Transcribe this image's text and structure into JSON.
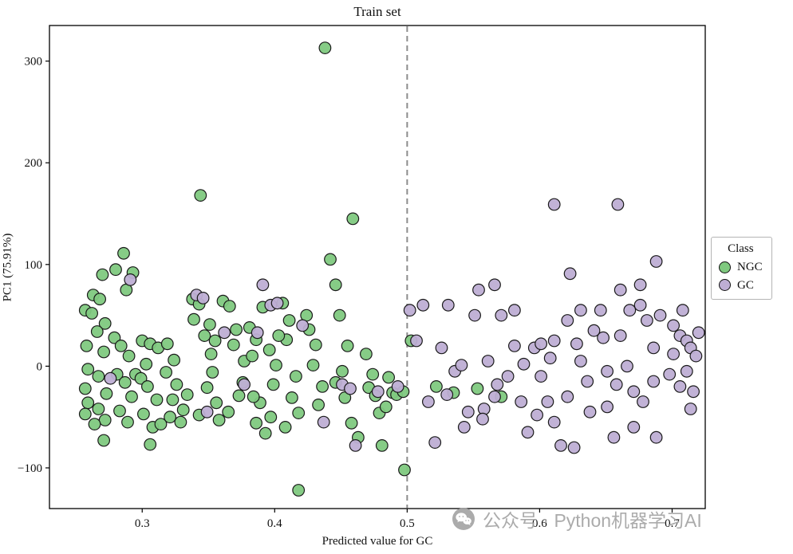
{
  "figure": {
    "title": "Train set"
  },
  "chart_data": {
    "type": "scatter",
    "title": "Train set",
    "xlabel": "Predicted value for GC",
    "ylabel": "PC1 (75.91%)",
    "xlim": [
      0.23,
      0.725
    ],
    "ylim": [
      -140,
      335
    ],
    "xticks": [
      0.3,
      0.4,
      0.5,
      0.6,
      0.7
    ],
    "xtick_labels": [
      "0.3",
      "0.4",
      "0.5",
      "0.6",
      "0.7"
    ],
    "yticks": [
      -100,
      0,
      100,
      200,
      300
    ],
    "ytick_labels": [
      "−100",
      "0",
      "100",
      "200",
      "300"
    ],
    "grid": false,
    "threshold_x": 0.5,
    "threshold_style": {
      "color": "#8c8c8c",
      "dash": "7 5"
    },
    "legend": {
      "title": "Class",
      "position": "right-outside"
    },
    "series": [
      {
        "name": "NGC",
        "color": "#7fc97f",
        "points": [
          [
            0.257,
            55
          ],
          [
            0.262,
            52
          ],
          [
            0.263,
            70
          ],
          [
            0.268,
            66
          ],
          [
            0.27,
            90
          ],
          [
            0.272,
            42
          ],
          [
            0.266,
            34
          ],
          [
            0.258,
            20
          ],
          [
            0.271,
            14
          ],
          [
            0.259,
            -3
          ],
          [
            0.267,
            -10
          ],
          [
            0.257,
            -22
          ],
          [
            0.273,
            -27
          ],
          [
            0.259,
            -36
          ],
          [
            0.267,
            -42
          ],
          [
            0.257,
            -47
          ],
          [
            0.272,
            -53
          ],
          [
            0.264,
            -57
          ],
          [
            0.271,
            -73
          ],
          [
            0.28,
            95
          ],
          [
            0.286,
            111
          ],
          [
            0.293,
            92
          ],
          [
            0.288,
            75
          ],
          [
            0.279,
            28
          ],
          [
            0.284,
            20
          ],
          [
            0.29,
            10
          ],
          [
            0.281,
            -8
          ],
          [
            0.287,
            -16
          ],
          [
            0.292,
            -30
          ],
          [
            0.283,
            -44
          ],
          [
            0.289,
            -55
          ],
          [
            0.295,
            -8
          ],
          [
            0.3,
            25
          ],
          [
            0.306,
            22
          ],
          [
            0.312,
            18
          ],
          [
            0.299,
            -12
          ],
          [
            0.304,
            -20
          ],
          [
            0.311,
            -33
          ],
          [
            0.301,
            -47
          ],
          [
            0.308,
            -60
          ],
          [
            0.306,
            -77
          ],
          [
            0.314,
            -57
          ],
          [
            0.303,
            2
          ],
          [
            0.319,
            22
          ],
          [
            0.324,
            6
          ],
          [
            0.318,
            -6
          ],
          [
            0.326,
            -18
          ],
          [
            0.323,
            -33
          ],
          [
            0.331,
            -43
          ],
          [
            0.329,
            -55
          ],
          [
            0.334,
            -28
          ],
          [
            0.321,
            -50
          ],
          [
            0.338,
            66
          ],
          [
            0.343,
            61
          ],
          [
            0.339,
            46
          ],
          [
            0.344,
            168
          ],
          [
            0.351,
            41
          ],
          [
            0.347,
            30
          ],
          [
            0.353,
            -6
          ],
          [
            0.349,
            -21
          ],
          [
            0.356,
            -36
          ],
          [
            0.343,
            -48
          ],
          [
            0.358,
            -53
          ],
          [
            0.352,
            12
          ],
          [
            0.355,
            25
          ],
          [
            0.361,
            64
          ],
          [
            0.366,
            59
          ],
          [
            0.371,
            36
          ],
          [
            0.369,
            21
          ],
          [
            0.376,
            -16
          ],
          [
            0.373,
            -29
          ],
          [
            0.365,
            -45
          ],
          [
            0.377,
            5
          ],
          [
            0.381,
            38
          ],
          [
            0.386,
            26
          ],
          [
            0.383,
            10
          ],
          [
            0.391,
            58
          ],
          [
            0.389,
            -36
          ],
          [
            0.386,
            -56
          ],
          [
            0.393,
            -66
          ],
          [
            0.396,
            16
          ],
          [
            0.384,
            -30
          ],
          [
            0.397,
            -50
          ],
          [
            0.401,
            1
          ],
          [
            0.399,
            -18
          ],
          [
            0.406,
            62
          ],
          [
            0.411,
            45
          ],
          [
            0.409,
            26
          ],
          [
            0.416,
            -10
          ],
          [
            0.413,
            -31
          ],
          [
            0.418,
            -46
          ],
          [
            0.403,
            30
          ],
          [
            0.408,
            -60
          ],
          [
            0.418,
            -122
          ],
          [
            0.426,
            36
          ],
          [
            0.431,
            21
          ],
          [
            0.429,
            1
          ],
          [
            0.436,
            -20
          ],
          [
            0.424,
            50
          ],
          [
            0.433,
            -38
          ],
          [
            0.438,
            313
          ],
          [
            0.442,
            105
          ],
          [
            0.446,
            80
          ],
          [
            0.449,
            50
          ],
          [
            0.446,
            -16
          ],
          [
            0.453,
            -31
          ],
          [
            0.458,
            -56
          ],
          [
            0.455,
            20
          ],
          [
            0.451,
            -5
          ],
          [
            0.459,
            145
          ],
          [
            0.469,
            12
          ],
          [
            0.471,
            -21
          ],
          [
            0.476,
            -29
          ],
          [
            0.479,
            -46
          ],
          [
            0.463,
            -70
          ],
          [
            0.474,
            -8
          ],
          [
            0.481,
            -78
          ],
          [
            0.486,
            -11
          ],
          [
            0.489,
            -26
          ],
          [
            0.492,
            -28
          ],
          [
            0.497,
            -25
          ],
          [
            0.484,
            -40
          ],
          [
            0.503,
            25
          ],
          [
            0.498,
            -102
          ],
          [
            0.522,
            -20
          ],
          [
            0.535,
            -26
          ],
          [
            0.553,
            -22
          ],
          [
            0.571,
            -30
          ]
        ]
      },
      {
        "name": "GC",
        "color": "#beaed4",
        "points": [
          [
            0.276,
            -12
          ],
          [
            0.291,
            85
          ],
          [
            0.341,
            70
          ],
          [
            0.346,
            67
          ],
          [
            0.349,
            -45
          ],
          [
            0.362,
            33
          ],
          [
            0.377,
            -18
          ],
          [
            0.387,
            33
          ],
          [
            0.391,
            80
          ],
          [
            0.397,
            60
          ],
          [
            0.402,
            62
          ],
          [
            0.421,
            40
          ],
          [
            0.437,
            -55
          ],
          [
            0.451,
            -18
          ],
          [
            0.457,
            -22
          ],
          [
            0.461,
            -78
          ],
          [
            0.493,
            -20
          ],
          [
            0.478,
            -25
          ],
          [
            0.502,
            55
          ],
          [
            0.507,
            25
          ],
          [
            0.512,
            60
          ],
          [
            0.516,
            -35
          ],
          [
            0.521,
            -75
          ],
          [
            0.526,
            18
          ],
          [
            0.531,
            60
          ],
          [
            0.536,
            -5
          ],
          [
            0.541,
            1
          ],
          [
            0.546,
            -45
          ],
          [
            0.551,
            50
          ],
          [
            0.554,
            75
          ],
          [
            0.558,
            -42
          ],
          [
            0.561,
            5
          ],
          [
            0.566,
            80
          ],
          [
            0.566,
            -30
          ],
          [
            0.571,
            50
          ],
          [
            0.576,
            -10
          ],
          [
            0.581,
            55
          ],
          [
            0.581,
            20
          ],
          [
            0.586,
            -35
          ],
          [
            0.591,
            -65
          ],
          [
            0.596,
            18
          ],
          [
            0.601,
            22
          ],
          [
            0.601,
            -10
          ],
          [
            0.606,
            -35
          ],
          [
            0.611,
            159
          ],
          [
            0.611,
            25
          ],
          [
            0.611,
            -55
          ],
          [
            0.616,
            -78
          ],
          [
            0.621,
            45
          ],
          [
            0.621,
            -30
          ],
          [
            0.623,
            91
          ],
          [
            0.626,
            -80
          ],
          [
            0.631,
            55
          ],
          [
            0.631,
            5
          ],
          [
            0.636,
            -15
          ],
          [
            0.641,
            35
          ],
          [
            0.646,
            55
          ],
          [
            0.651,
            -5
          ],
          [
            0.651,
            -40
          ],
          [
            0.656,
            -70
          ],
          [
            0.659,
            159
          ],
          [
            0.661,
            75
          ],
          [
            0.661,
            30
          ],
          [
            0.666,
            0
          ],
          [
            0.671,
            -25
          ],
          [
            0.671,
            -60
          ],
          [
            0.676,
            60
          ],
          [
            0.676,
            80
          ],
          [
            0.681,
            45
          ],
          [
            0.686,
            18
          ],
          [
            0.686,
            -15
          ],
          [
            0.688,
            103
          ],
          [
            0.691,
            50
          ],
          [
            0.701,
            40
          ],
          [
            0.701,
            12
          ],
          [
            0.706,
            30
          ],
          [
            0.706,
            -20
          ],
          [
            0.711,
            25
          ],
          [
            0.711,
            -5
          ],
          [
            0.714,
            18
          ],
          [
            0.714,
            -42
          ],
          [
            0.718,
            10
          ],
          [
            0.72,
            33
          ],
          [
            0.53,
            -28
          ],
          [
            0.543,
            -60
          ],
          [
            0.557,
            -52
          ],
          [
            0.568,
            -18
          ],
          [
            0.588,
            2
          ],
          [
            0.598,
            -48
          ],
          [
            0.608,
            8
          ],
          [
            0.628,
            22
          ],
          [
            0.638,
            -45
          ],
          [
            0.648,
            28
          ],
          [
            0.658,
            -18
          ],
          [
            0.668,
            55
          ],
          [
            0.678,
            -35
          ],
          [
            0.688,
            -70
          ],
          [
            0.698,
            -8
          ],
          [
            0.708,
            55
          ],
          [
            0.716,
            -25
          ]
        ]
      }
    ]
  },
  "watermark": {
    "text": "公众号 · Python机器学习AI",
    "icon": "wechat-icon"
  }
}
